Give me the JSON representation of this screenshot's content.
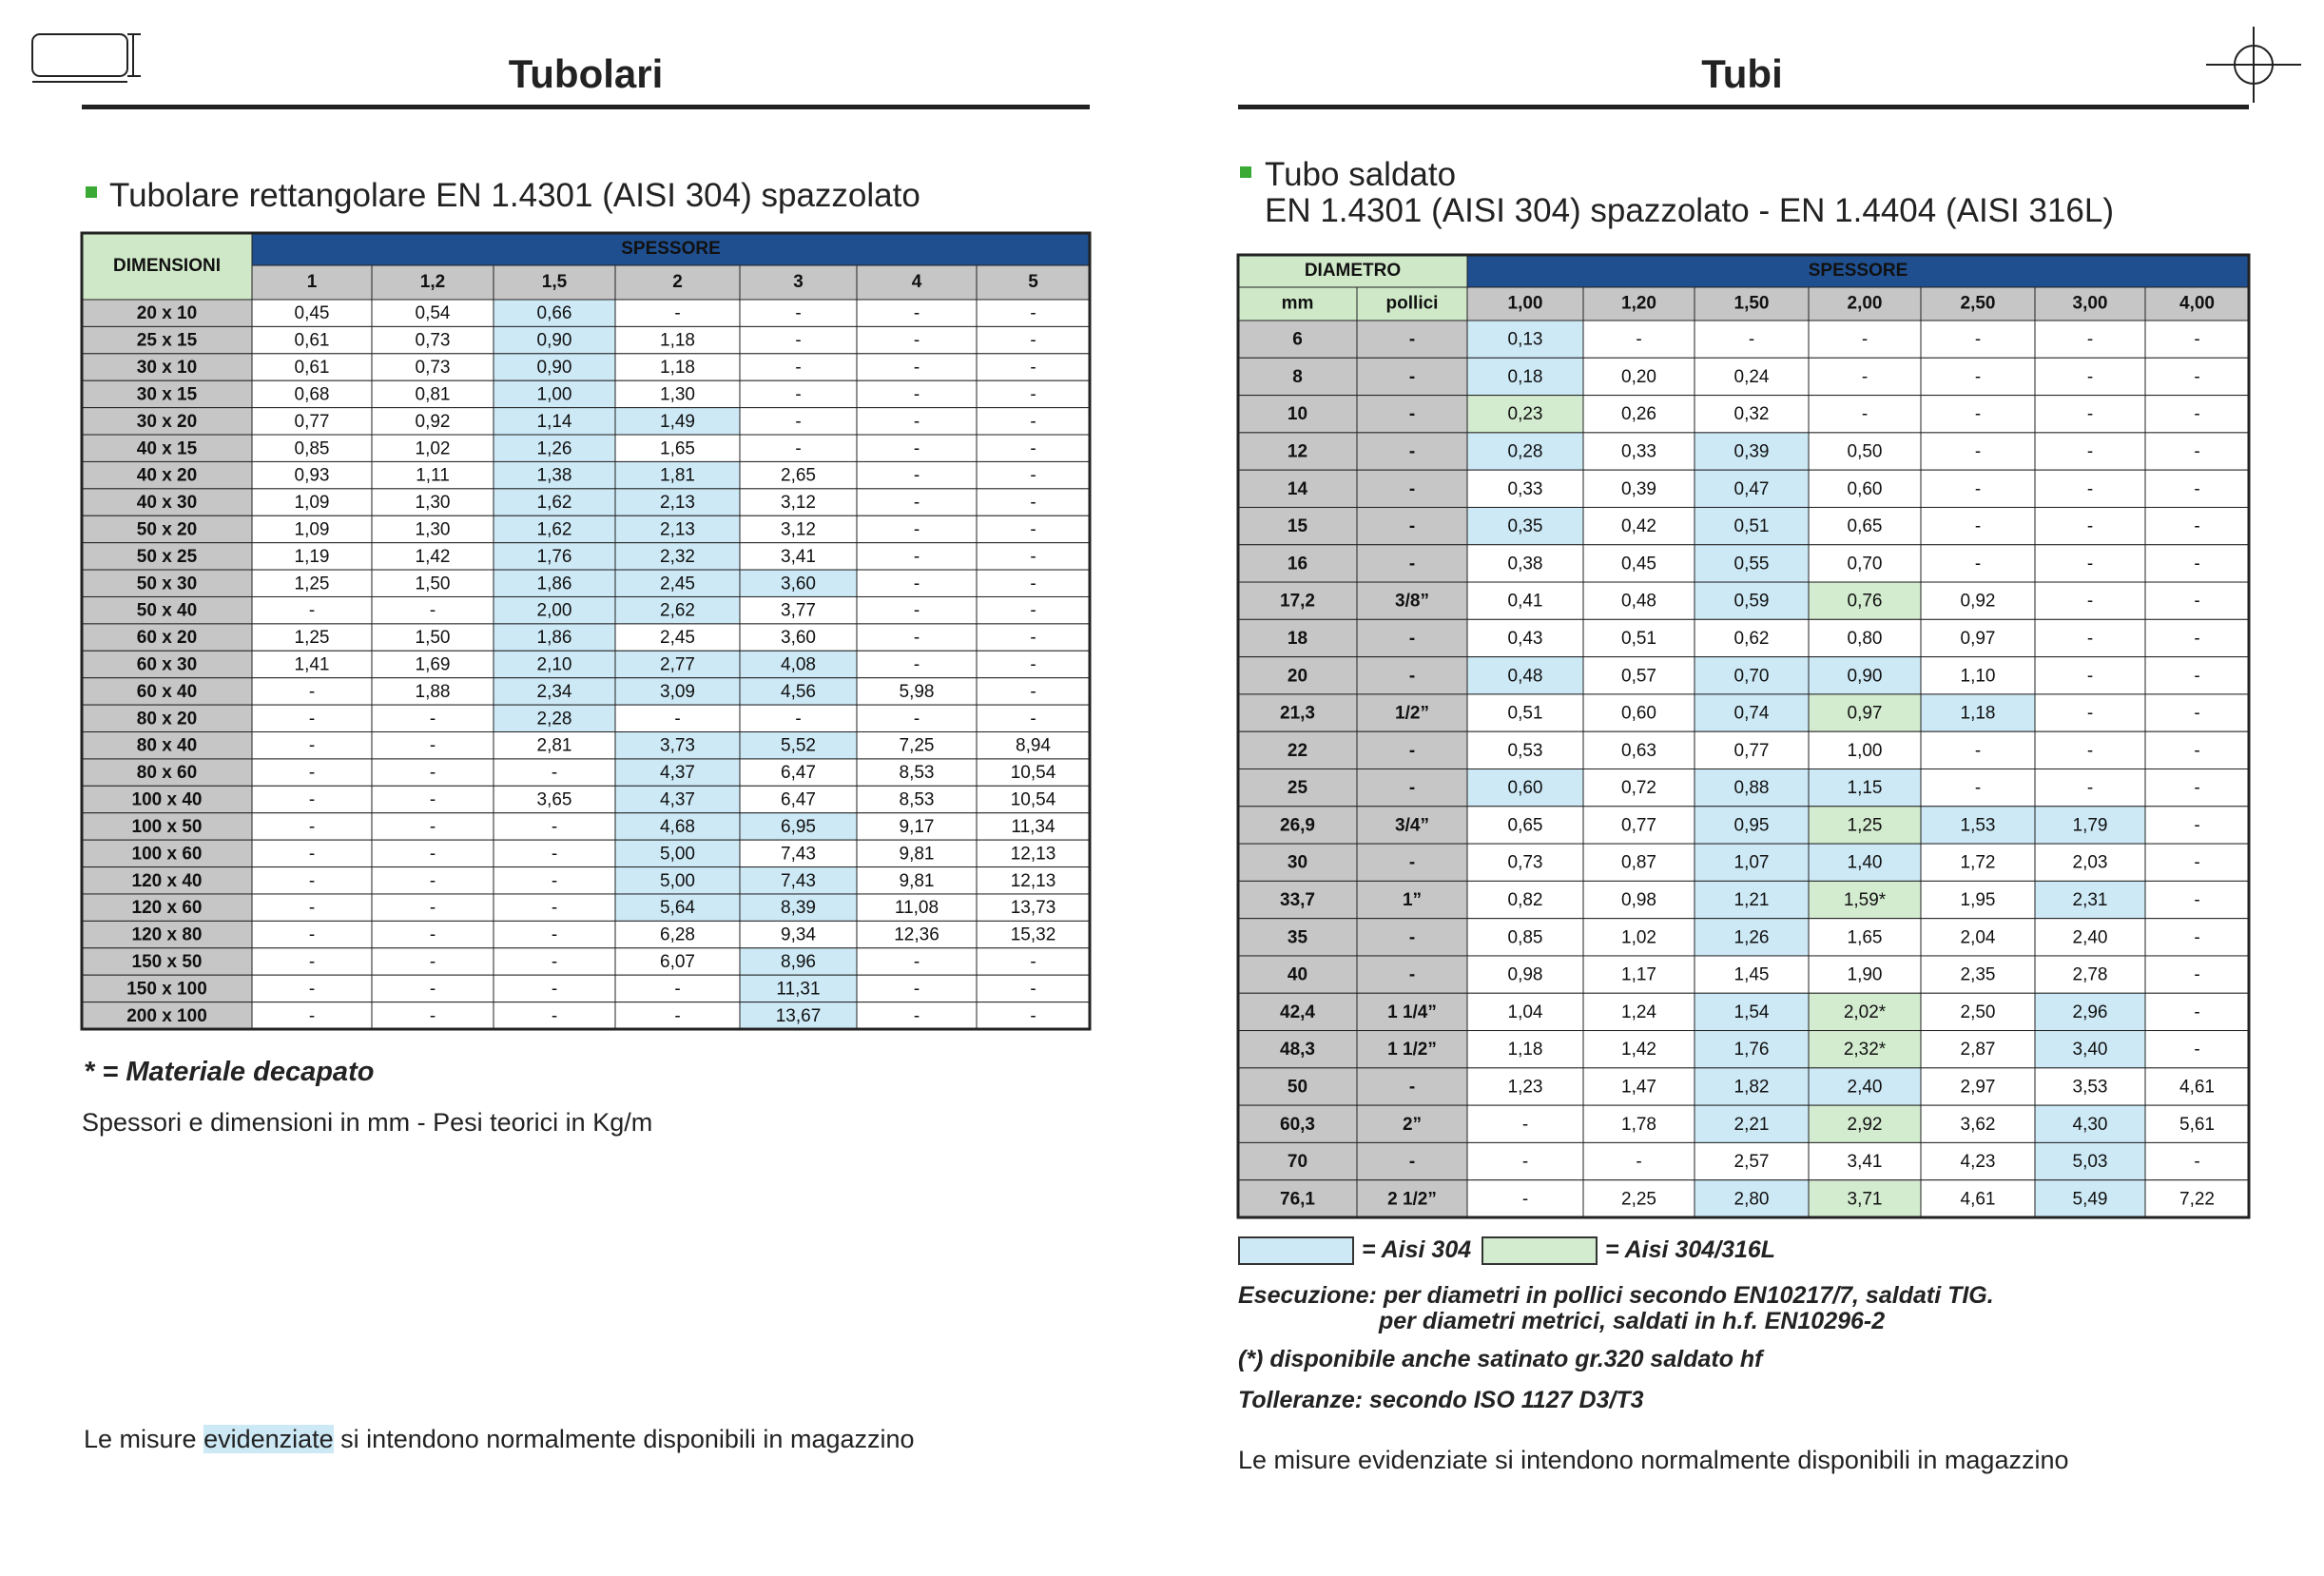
{
  "left": {
    "title": "Tubolari",
    "subtitle": "Tubolare rettangolare EN 1.4301 (AISI 304) spazzolato",
    "table": {
      "corner": "DIMENSIONI",
      "group": "SPESSORE",
      "columns": [
        "1",
        "1,2",
        "1,5",
        "2",
        "3",
        "4",
        "5"
      ],
      "rows": [
        [
          "20 x 10",
          "0,45",
          "0,54",
          "0,66",
          "-",
          "-",
          "-",
          "-"
        ],
        [
          "25 x 15",
          "0,61",
          "0,73",
          "0,90",
          "1,18",
          "-",
          "-",
          "-"
        ],
        [
          "30 x 10",
          "0,61",
          "0,73",
          "0,90",
          "1,18",
          "-",
          "-",
          "-"
        ],
        [
          "30 x 15",
          "0,68",
          "0,81",
          "1,00",
          "1,30",
          "-",
          "-",
          "-"
        ],
        [
          "30 x 20",
          "0,77",
          "0,92",
          "1,14",
          "1,49",
          "-",
          "-",
          "-"
        ],
        [
          "40 x 15",
          "0,85",
          "1,02",
          "1,26",
          "1,65",
          "-",
          "-",
          "-"
        ],
        [
          "40 x 20",
          "0,93",
          "1,11",
          "1,38",
          "1,81",
          "2,65",
          "-",
          "-"
        ],
        [
          "40 x 30",
          "1,09",
          "1,30",
          "1,62",
          "2,13",
          "3,12",
          "-",
          "-"
        ],
        [
          "50 x 20",
          "1,09",
          "1,30",
          "1,62",
          "2,13",
          "3,12",
          "-",
          "-"
        ],
        [
          "50 x 25",
          "1,19",
          "1,42",
          "1,76",
          "2,32",
          "3,41",
          "-",
          "-"
        ],
        [
          "50 x 30",
          "1,25",
          "1,50",
          "1,86",
          "2,45",
          "3,60",
          "-",
          "-"
        ],
        [
          "50 x 40",
          "-",
          "-",
          "2,00",
          "2,62",
          "3,77",
          "-",
          "-"
        ],
        [
          "60 x 20",
          "1,25",
          "1,50",
          "1,86",
          "2,45",
          "3,60",
          "-",
          "-"
        ],
        [
          "60 x 30",
          "1,41",
          "1,69",
          "2,10",
          "2,77",
          "4,08",
          "-",
          "-"
        ],
        [
          "60 x 40",
          "-",
          "1,88",
          "2,34",
          "3,09",
          "4,56",
          "5,98",
          "-"
        ],
        [
          "80 x 20",
          "-",
          "-",
          "2,28",
          "-",
          "-",
          "-",
          "-"
        ],
        [
          "80 x 40",
          "-",
          "-",
          "2,81",
          "3,73",
          "5,52",
          "7,25",
          "8,94"
        ],
        [
          "80 x 60",
          "-",
          "-",
          "-",
          "4,37",
          "6,47",
          "8,53",
          "10,54"
        ],
        [
          "100 x 40",
          "-",
          "-",
          "3,65",
          "4,37",
          "6,47",
          "8,53",
          "10,54"
        ],
        [
          "100 x 50",
          "-",
          "-",
          "-",
          "4,68",
          "6,95",
          "9,17",
          "11,34"
        ],
        [
          "100 x 60",
          "-",
          "-",
          "-",
          "5,00",
          "7,43",
          "9,81",
          "12,13"
        ],
        [
          "120 x 40",
          "-",
          "-",
          "-",
          "5,00",
          "7,43",
          "9,81",
          "12,13"
        ],
        [
          "120 x 60",
          "-",
          "-",
          "-",
          "5,64",
          "8,39",
          "11,08",
          "13,73"
        ],
        [
          "120 x 80",
          "-",
          "-",
          "-",
          "6,28",
          "9,34",
          "12,36",
          "15,32"
        ],
        [
          "150 x 50",
          "-",
          "-",
          "-",
          "6,07",
          "8,96",
          "-",
          "-"
        ],
        [
          "150 x 100",
          "-",
          "-",
          "-",
          "-",
          "11,31",
          "-",
          "-"
        ],
        [
          "200 x 100",
          "-",
          "-",
          "-",
          "-",
          "13,67",
          "-",
          "-"
        ]
      ],
      "highlight": [
        {
          "color": "#cde9f6",
          "cells": [
            [
              0,
              3
            ],
            [
              1,
              3
            ],
            [
              2,
              3
            ],
            [
              3,
              3
            ],
            [
              4,
              3
            ],
            [
              4,
              4
            ],
            [
              5,
              3
            ],
            [
              6,
              3
            ],
            [
              6,
              4
            ],
            [
              7,
              3
            ],
            [
              7,
              4
            ],
            [
              8,
              3
            ],
            [
              8,
              4
            ],
            [
              9,
              3
            ],
            [
              9,
              4
            ],
            [
              10,
              3
            ],
            [
              10,
              4
            ],
            [
              10,
              5
            ],
            [
              11,
              3
            ],
            [
              11,
              4
            ],
            [
              12,
              3
            ],
            [
              13,
              3
            ],
            [
              13,
              4
            ],
            [
              13,
              5
            ],
            [
              14,
              3
            ],
            [
              14,
              4
            ],
            [
              14,
              5
            ],
            [
              15,
              3
            ],
            [
              16,
              4
            ],
            [
              16,
              5
            ],
            [
              17,
              4
            ],
            [
              18,
              4
            ],
            [
              19,
              4
            ],
            [
              19,
              5
            ],
            [
              20,
              4
            ],
            [
              21,
              4
            ],
            [
              21,
              5
            ],
            [
              22,
              4
            ],
            [
              22,
              5
            ],
            [
              24,
              5
            ],
            [
              25,
              5
            ],
            [
              26,
              5
            ]
          ]
        }
      ]
    },
    "note": "* = Materiale decapato",
    "units": "Spessori e dimensioni in mm - Pesi teorici in Kg/m",
    "footer": [
      "Le misure ",
      "evidenziate",
      " si intendono normalmente disponibili in magazzino"
    ]
  },
  "right": {
    "title": "Tubi",
    "subtitle": [
      "Tubo saldato",
      "EN 1.4301 (AISI 304) spazzolato - EN 1.4404 (AISI 316L)"
    ],
    "table": {
      "corner": "DIAMETRO",
      "subcolumns": [
        "mm",
        "pollici"
      ],
      "group": "SPESSORE",
      "columns": [
        "1,00",
        "1,20",
        "1,50",
        "2,00",
        "2,50",
        "3,00",
        "4,00"
      ],
      "rows": [
        [
          "6",
          "-",
          "0,13",
          "-",
          "-",
          "-",
          "-",
          "-",
          "-"
        ],
        [
          "8",
          "-",
          "0,18",
          "0,20",
          "0,24",
          "-",
          "-",
          "-",
          "-"
        ],
        [
          "10",
          "-",
          "0,23",
          "0,26",
          "0,32",
          "-",
          "-",
          "-",
          "-"
        ],
        [
          "12",
          "-",
          "0,28",
          "0,33",
          "0,39",
          "0,50",
          "-",
          "-",
          "-"
        ],
        [
          "14",
          "-",
          "0,33",
          "0,39",
          "0,47",
          "0,60",
          "-",
          "-",
          "-"
        ],
        [
          "15",
          "-",
          "0,35",
          "0,42",
          "0,51",
          "0,65",
          "-",
          "-",
          "-"
        ],
        [
          "16",
          "-",
          "0,38",
          "0,45",
          "0,55",
          "0,70",
          "-",
          "-",
          "-"
        ],
        [
          "17,2",
          "3/8”",
          "0,41",
          "0,48",
          "0,59",
          "0,76",
          "0,92",
          "-",
          "-"
        ],
        [
          "18",
          "-",
          "0,43",
          "0,51",
          "0,62",
          "0,80",
          "0,97",
          "-",
          "-"
        ],
        [
          "20",
          "-",
          "0,48",
          "0,57",
          "0,70",
          "0,90",
          "1,10",
          "-",
          "-"
        ],
        [
          "21,3",
          "1/2”",
          "0,51",
          "0,60",
          "0,74",
          "0,97",
          "1,18",
          "-",
          "-"
        ],
        [
          "22",
          "-",
          "0,53",
          "0,63",
          "0,77",
          "1,00",
          "-",
          "-",
          "-"
        ],
        [
          "25",
          "-",
          "0,60",
          "0,72",
          "0,88",
          "1,15",
          "-",
          "-",
          "-"
        ],
        [
          "26,9",
          "3/4”",
          "0,65",
          "0,77",
          "0,95",
          "1,25",
          "1,53",
          "1,79",
          "-"
        ],
        [
          "30",
          "-",
          "0,73",
          "0,87",
          "1,07",
          "1,40",
          "1,72",
          "2,03",
          "-"
        ],
        [
          "33,7",
          "1”",
          "0,82",
          "0,98",
          "1,21",
          "1,59*",
          "1,95",
          "2,31",
          "-"
        ],
        [
          "35",
          "-",
          "0,85",
          "1,02",
          "1,26",
          "1,65",
          "2,04",
          "2,40",
          "-"
        ],
        [
          "40",
          "-",
          "0,98",
          "1,17",
          "1,45",
          "1,90",
          "2,35",
          "2,78",
          "-"
        ],
        [
          "42,4",
          "1 1/4”",
          "1,04",
          "1,24",
          "1,54",
          "2,02*",
          "2,50",
          "2,96",
          "-"
        ],
        [
          "48,3",
          "1 1/2”",
          "1,18",
          "1,42",
          "1,76",
          "2,32*",
          "2,87",
          "3,40",
          "-"
        ],
        [
          "50",
          "-",
          "1,23",
          "1,47",
          "1,82",
          "2,40",
          "2,97",
          "3,53",
          "4,61"
        ],
        [
          "60,3",
          "2”",
          "-",
          "1,78",
          "2,21",
          "2,92",
          "3,62",
          "4,30",
          "5,61"
        ],
        [
          "70",
          "-",
          "-",
          "-",
          "2,57",
          "3,41",
          "4,23",
          "5,03",
          "-"
        ],
        [
          "76,1",
          "2 1/2”",
          "-",
          "2,25",
          "2,80",
          "3,71",
          "4,61",
          "5,49",
          "7,22"
        ]
      ],
      "highlight": [
        {
          "color": "#cde9f6",
          "cells": [
            [
              0,
              2
            ],
            [
              1,
              2
            ],
            [
              3,
              2
            ],
            [
              3,
              4
            ],
            [
              4,
              4
            ],
            [
              5,
              2
            ],
            [
              5,
              4
            ],
            [
              6,
              4
            ],
            [
              7,
              4
            ],
            [
              9,
              2
            ],
            [
              9,
              4
            ],
            [
              9,
              5
            ],
            [
              10,
              4
            ],
            [
              10,
              6
            ],
            [
              12,
              2
            ],
            [
              12,
              4
            ],
            [
              12,
              5
            ],
            [
              13,
              4
            ],
            [
              13,
              6
            ],
            [
              13,
              7
            ],
            [
              14,
              4
            ],
            [
              14,
              5
            ],
            [
              15,
              4
            ],
            [
              15,
              7
            ],
            [
              16,
              4
            ],
            [
              18,
              4
            ],
            [
              18,
              7
            ],
            [
              19,
              4
            ],
            [
              19,
              7
            ],
            [
              20,
              4
            ],
            [
              20,
              5
            ],
            [
              21,
              4
            ],
            [
              21,
              7
            ],
            [
              22,
              7
            ],
            [
              23,
              4
            ],
            [
              23,
              7
            ]
          ]
        },
        {
          "color": "#d3ebcf",
          "cells": [
            [
              2,
              2
            ],
            [
              7,
              5
            ],
            [
              10,
              5
            ],
            [
              13,
              5
            ],
            [
              15,
              5
            ],
            [
              18,
              5
            ],
            [
              19,
              5
            ],
            [
              21,
              5
            ],
            [
              23,
              5
            ]
          ]
        }
      ]
    },
    "legend": [
      "= Aisi 304",
      "= Aisi 304/316L"
    ],
    "notes": [
      "Esecuzione: per diametri in pollici secondo EN10217/7, saldati TIG.",
      "per diametri metrici, saldati in h.f. EN10296-2",
      "(*) disponibile anche satinato gr.320 saldato hf",
      "Tolleranze: secondo ISO 1127 D3/T3"
    ],
    "footer": "Le misure evidenziate si intendono normalmente disponibili in magazzino"
  }
}
